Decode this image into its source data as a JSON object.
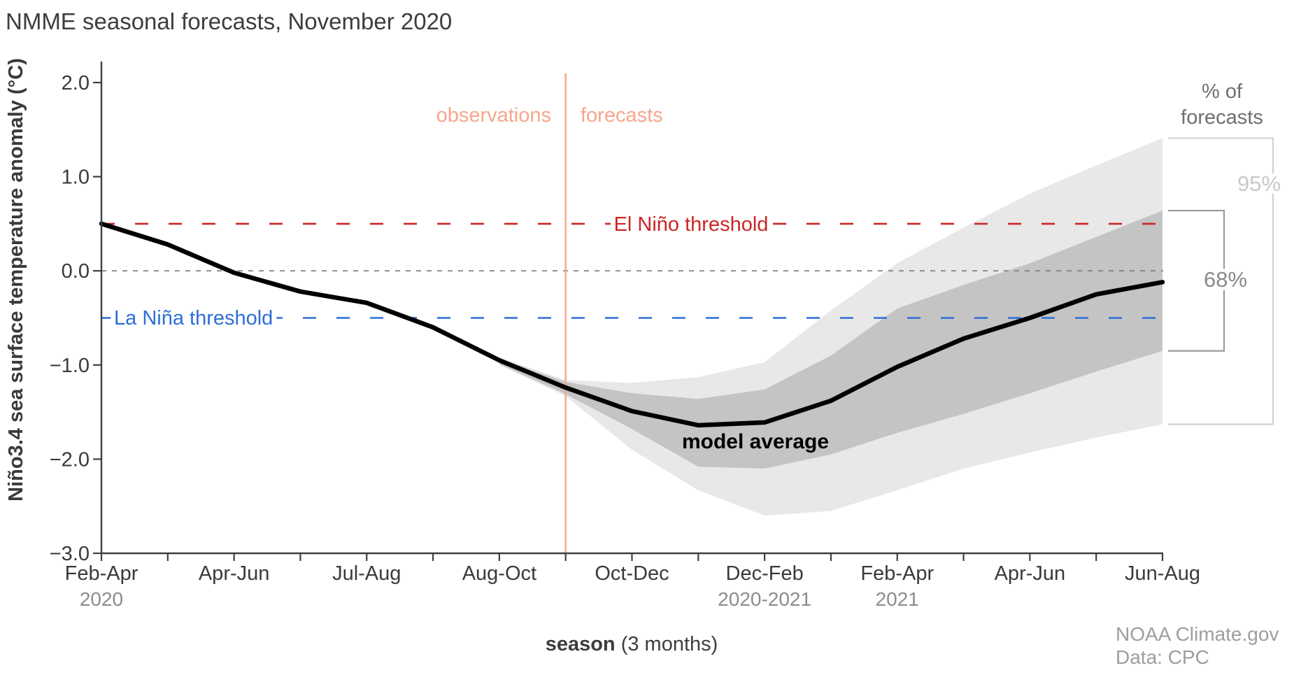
{
  "title": "NMME seasonal forecasts, November 2020",
  "labels": {
    "observations": "observations",
    "forecasts": "forecasts",
    "el_nino_threshold": "El Niño threshold",
    "la_nina_threshold": "La Niña threshold",
    "model_average": "model average",
    "pct_header_line1": "% of",
    "pct_header_line2": "forecasts",
    "pct95": "95%",
    "pct68": "68%",
    "xlabel_bold": "season",
    "xlabel_rest": " (3 months)",
    "credit_line1": "NOAA Climate.gov",
    "credit_line2": "Data: CPC"
  },
  "colors": {
    "title_text": "#3d3d3d",
    "tick_text": "#3a3a3a",
    "sub_tick_text": "#8c8c8c",
    "el_nino_red": "#cc2525",
    "la_nina_blue": "#2d6ed7",
    "zero_line_gray": "#7a7a7a",
    "salmon_divider": "#f7a68c",
    "band_68": "#c4c4c4",
    "band_95": "#e8e8e8",
    "mean_line": "#000000",
    "bracket_95": "#d2d2d2",
    "bracket_68": "#9a9a9a",
    "pct95_text": "#c9c9c9",
    "pct68_text": "#8a8a8a",
    "pct_header_text": "#6f6f6f",
    "credit_text": "#9e9e9e",
    "axis": "#3f3f3f"
  },
  "chart_data": {
    "type": "line",
    "title": "NMME seasonal forecasts, November 2020",
    "ylabel": "Niño3.4 sea surface temperature anomaly (°C)",
    "xlabel": "season (3 months)",
    "ylim": [
      -3.0,
      2.0
    ],
    "grid": false,
    "y_ticks": [
      2.0,
      1.0,
      0.0,
      -1.0,
      -2.0,
      -3.0
    ],
    "y_tick_labels": [
      "2.0",
      "1.0",
      "0.0",
      "−1.0",
      "−2.0",
      "−3.0"
    ],
    "x_stations": 17,
    "x_major_ticks": [
      {
        "index": 0,
        "label": "Feb-Apr",
        "sub": "2020"
      },
      {
        "index": 2,
        "label": "Apr-Jun",
        "sub": null
      },
      {
        "index": 4,
        "label": "Jul-Aug",
        "sub": null
      },
      {
        "index": 6,
        "label": "Aug-Oct",
        "sub": null
      },
      {
        "index": 8,
        "label": "Oct-Dec",
        "sub": null
      },
      {
        "index": 10,
        "label": "Dec-Feb",
        "sub": "2020-2021"
      },
      {
        "index": 12,
        "label": "Feb-Apr",
        "sub": "2021"
      },
      {
        "index": 14,
        "label": "Apr-Jun",
        "sub": null
      },
      {
        "index": 16,
        "label": "Jun-Aug",
        "sub": null
      }
    ],
    "divider_index": 7,
    "thresholds": {
      "el_nino": 0.5,
      "zero": 0.0,
      "la_nina": -0.5
    },
    "observations": {
      "x_index": [
        0,
        1,
        2,
        3,
        4,
        5,
        6,
        7
      ],
      "values": [
        0.5,
        0.28,
        -0.02,
        -0.22,
        -0.34,
        -0.6,
        -0.95,
        -1.24
      ]
    },
    "forecast_mean": {
      "x_index": [
        7,
        8,
        9,
        10,
        11,
        12,
        13,
        14,
        15,
        16
      ],
      "values": [
        -1.24,
        -1.49,
        -1.64,
        -1.61,
        -1.38,
        -1.02,
        -0.72,
        -0.5,
        -0.25,
        -0.12
      ]
    },
    "band_68": {
      "x_index": [
        6,
        7,
        8,
        9,
        10,
        11,
        12,
        13,
        14,
        15,
        16
      ],
      "top": [
        -0.93,
        -1.18,
        -1.3,
        -1.36,
        -1.26,
        -0.9,
        -0.4,
        -0.15,
        0.08,
        0.36,
        0.64
      ],
      "bottom": [
        -0.99,
        -1.31,
        -1.68,
        -2.08,
        -2.1,
        -1.95,
        -1.72,
        -1.52,
        -1.3,
        -1.07,
        -0.85
      ]
    },
    "band_95": {
      "x_index": [
        6,
        7,
        8,
        9,
        10,
        11,
        12,
        13,
        14,
        15,
        16
      ],
      "top": [
        -0.92,
        -1.16,
        -1.19,
        -1.13,
        -0.97,
        -0.42,
        0.08,
        0.46,
        0.82,
        1.12,
        1.41
      ],
      "bottom": [
        -1.0,
        -1.33,
        -1.9,
        -2.33,
        -2.6,
        -2.55,
        -2.33,
        -2.1,
        -1.93,
        -1.77,
        -1.63
      ]
    },
    "end_brackets": {
      "pct95": {
        "top_value": 1.41,
        "bottom_value": -1.63
      },
      "pct68": {
        "top_value": 0.64,
        "bottom_value": -0.85
      }
    }
  }
}
